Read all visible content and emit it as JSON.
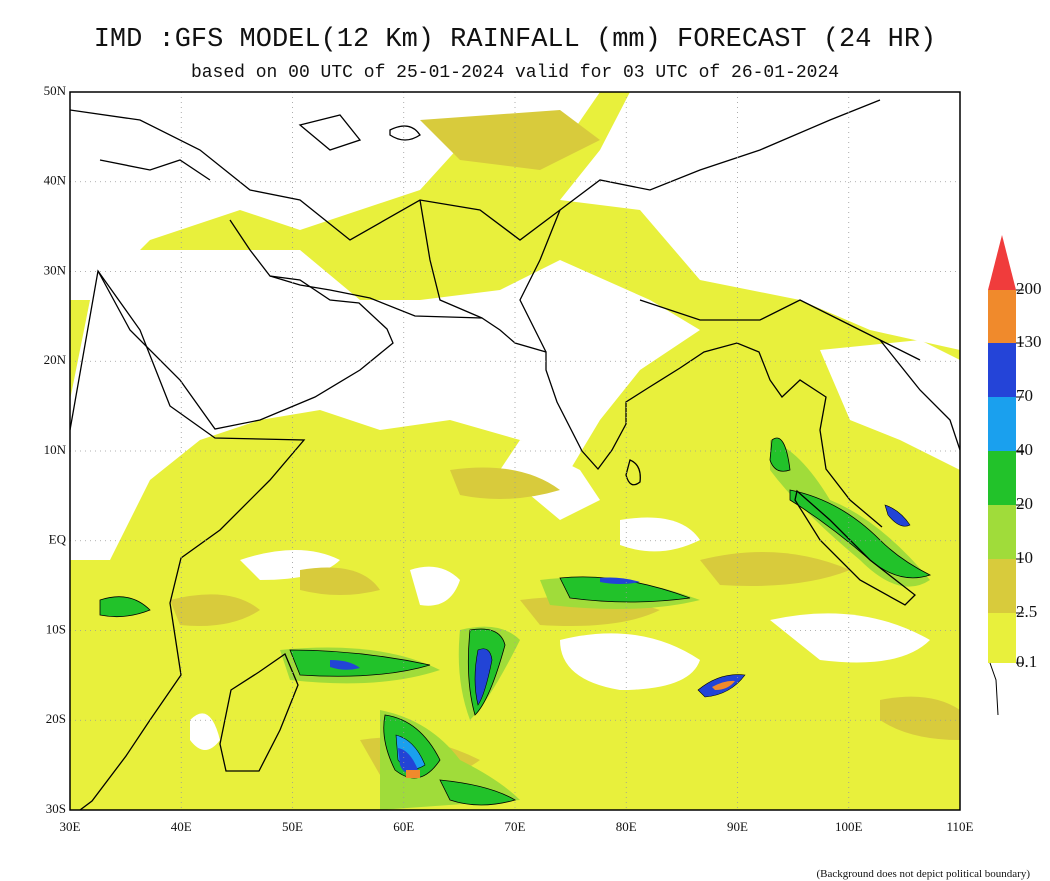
{
  "title": "IMD :GFS MODEL(12 Km) RAINFALL (mm) FORECAST (24 HR)",
  "subtitle": "based on 00 UTC of 25-01-2024 valid for 03 UTC of 26-01-2024",
  "lat_labels": [
    "50N",
    "40N",
    "30N",
    "20N",
    "10N",
    "EQ",
    "10S",
    "20S",
    "30S"
  ],
  "lon_labels": [
    "30E",
    "40E",
    "50E",
    "60E",
    "70E",
    "80E",
    "90E",
    "100E",
    "110E"
  ],
  "legend": {
    "labels": [
      "200",
      "130",
      "70",
      "40",
      "20",
      "10",
      "2.5",
      "0.1"
    ]
  },
  "footnote": "(Background does not depict political boundary)"
}
